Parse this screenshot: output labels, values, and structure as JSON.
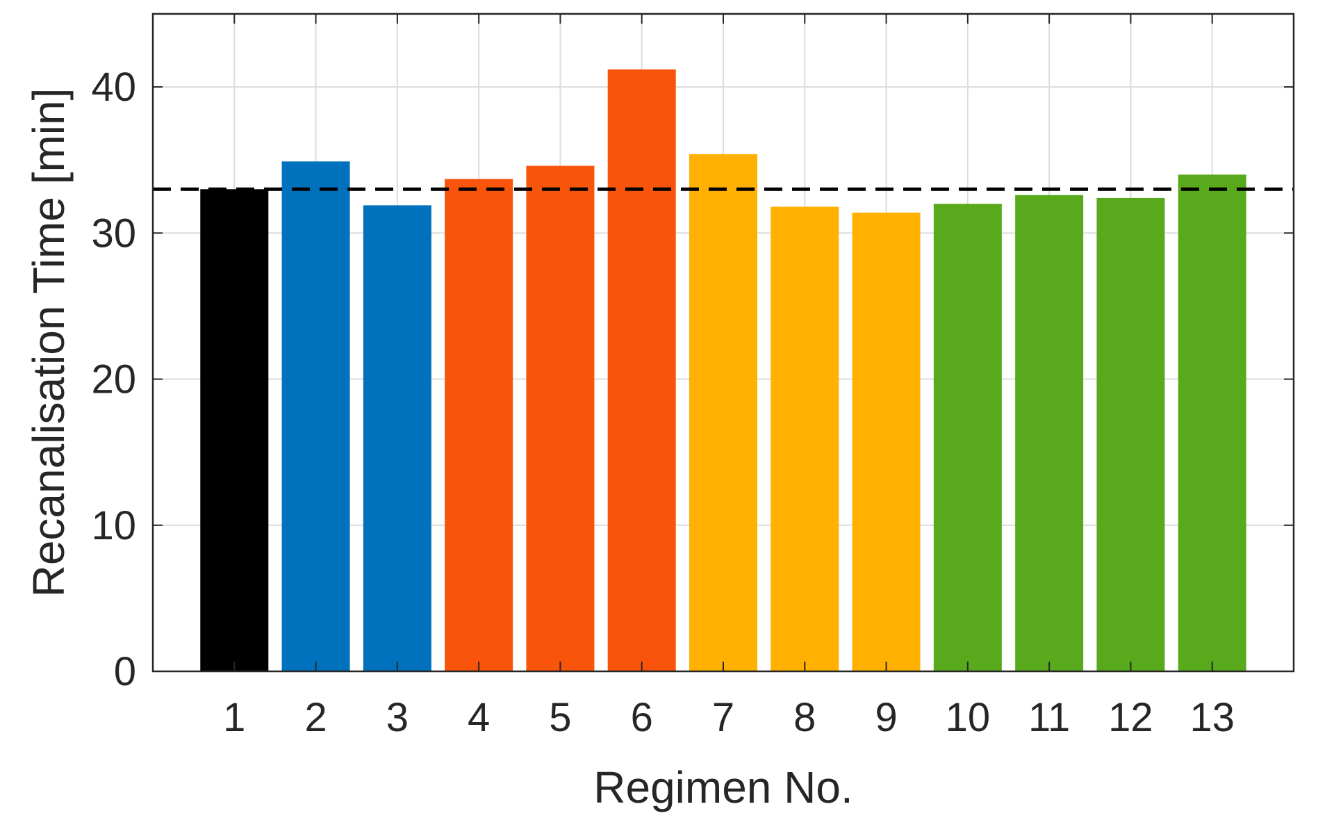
{
  "chart_data": {
    "type": "bar",
    "title": "",
    "xlabel": "Regimen No.",
    "ylabel": "Recanalisation Time [min]",
    "categories": [
      "1",
      "2",
      "3",
      "4",
      "5",
      "6",
      "7",
      "8",
      "9",
      "10",
      "11",
      "12",
      "13"
    ],
    "values": [
      33.0,
      34.9,
      31.9,
      33.7,
      34.6,
      41.2,
      35.4,
      31.8,
      31.4,
      32.0,
      32.6,
      32.4,
      34.0
    ],
    "bar_colors": [
      "#000000",
      "#0072BD",
      "#0072BD",
      "#F8540C",
      "#F8540C",
      "#F8540C",
      "#FFB000",
      "#FFB000",
      "#FFB000",
      "#58AA1C",
      "#58AA1C",
      "#58AA1C",
      "#58AA1C"
    ],
    "reference_line": {
      "value": 33.0,
      "style": "dashed",
      "color": "#000000"
    },
    "ylim": [
      0,
      45
    ],
    "yticks": [
      0,
      10,
      20,
      30,
      40
    ],
    "xlim": [
      0,
      14
    ],
    "grid": true,
    "legend": "none"
  }
}
